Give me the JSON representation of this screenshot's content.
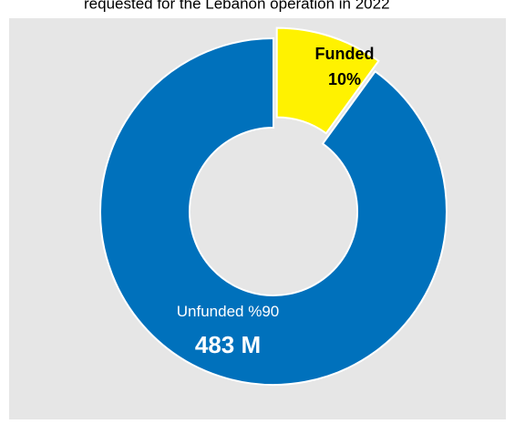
{
  "chart_data": {
    "type": "donut",
    "title": "requested for the Lebanon operation in 2022",
    "categories": [
      "Funded",
      "Unfunded"
    ],
    "values": [
      10,
      90
    ],
    "value_labels": [
      "10%",
      "%90"
    ],
    "colors": [
      "#fff200",
      "#0071bc"
    ],
    "annotation": "483 M"
  }
}
